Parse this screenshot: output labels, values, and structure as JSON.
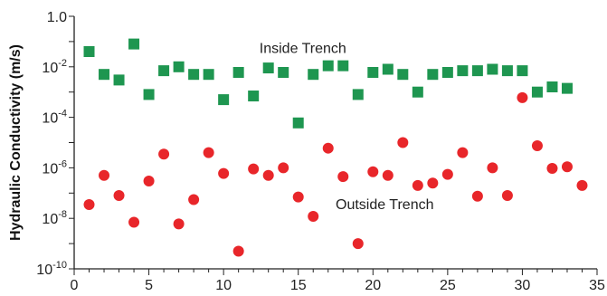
{
  "chart_data": {
    "type": "scatter",
    "title": "",
    "xlabel": "",
    "ylabel": "Hydraulic Conductivity (m/s)",
    "xlim": [
      0,
      35
    ],
    "ylim": [
      1e-10,
      1.0
    ],
    "yscale": "log",
    "grid": false,
    "legend": "none",
    "x_ticks": [
      "0",
      "5",
      "10",
      "15",
      "20",
      "25",
      "30",
      "35"
    ],
    "y_ticks": [
      {
        "base": "10",
        "exp": "-10"
      },
      {
        "base": "10",
        "exp": "-8"
      },
      {
        "base": "10",
        "exp": "-6"
      },
      {
        "base": "10",
        "exp": "-4"
      },
      {
        "base": "10",
        "exp": "-2"
      },
      {
        "base": "1.0",
        "exp": ""
      }
    ],
    "annotations": [
      {
        "text": "Inside Trench",
        "series": 0
      },
      {
        "text": "Outside Trench",
        "series": 1
      }
    ],
    "series": [
      {
        "marker": "square",
        "color": "#1e9650",
        "points": [
          [
            1,
            0.04
          ],
          [
            2,
            0.005
          ],
          [
            3,
            0.003
          ],
          [
            4,
            0.08
          ],
          [
            5,
            0.0008
          ],
          [
            6,
            0.007
          ],
          [
            7,
            0.01
          ],
          [
            8,
            0.005
          ],
          [
            9,
            0.005
          ],
          [
            10,
            0.0005
          ],
          [
            11,
            0.006
          ],
          [
            12,
            0.0007
          ],
          [
            13,
            0.009
          ],
          [
            14,
            0.006
          ],
          [
            15,
            6e-05
          ],
          [
            16,
            0.005
          ],
          [
            17,
            0.011
          ],
          [
            18,
            0.011
          ],
          [
            19,
            0.0008
          ],
          [
            20,
            0.006
          ],
          [
            21,
            0.008
          ],
          [
            22,
            0.005
          ],
          [
            23,
            0.001
          ],
          [
            24,
            0.005
          ],
          [
            25,
            0.006
          ],
          [
            26,
            0.007
          ],
          [
            27,
            0.007
          ],
          [
            28,
            0.008
          ],
          [
            29,
            0.007
          ],
          [
            30,
            0.007
          ],
          [
            31,
            0.001
          ],
          [
            32,
            0.0016
          ],
          [
            33,
            0.0014
          ]
        ]
      },
      {
        "marker": "circle",
        "color": "#e8262a",
        "points": [
          [
            1,
            3.5e-08
          ],
          [
            2,
            5e-07
          ],
          [
            3,
            8e-08
          ],
          [
            4,
            7e-09
          ],
          [
            5,
            3e-07
          ],
          [
            6,
            3.5e-06
          ],
          [
            7,
            6e-09
          ],
          [
            8,
            5.5e-08
          ],
          [
            9,
            4e-06
          ],
          [
            10,
            6e-07
          ],
          [
            11,
            5e-10
          ],
          [
            12,
            9e-07
          ],
          [
            13,
            5e-07
          ],
          [
            14,
            1e-06
          ],
          [
            15,
            7e-08
          ],
          [
            16,
            1.2e-08
          ],
          [
            17,
            6e-06
          ],
          [
            18,
            4.5e-07
          ],
          [
            19,
            1e-09
          ],
          [
            20,
            7e-07
          ],
          [
            21,
            5e-07
          ],
          [
            22,
            1e-05
          ],
          [
            23,
            2e-07
          ],
          [
            24,
            2.5e-07
          ],
          [
            25,
            5.5e-07
          ],
          [
            26,
            4e-06
          ],
          [
            27,
            7.5e-08
          ],
          [
            28,
            1e-06
          ],
          [
            29,
            8e-08
          ],
          [
            30,
            0.0006
          ],
          [
            31,
            7.5e-06
          ],
          [
            32,
            9.5e-07
          ],
          [
            33,
            1.1e-06
          ],
          [
            34,
            2e-07
          ]
        ]
      }
    ]
  }
}
